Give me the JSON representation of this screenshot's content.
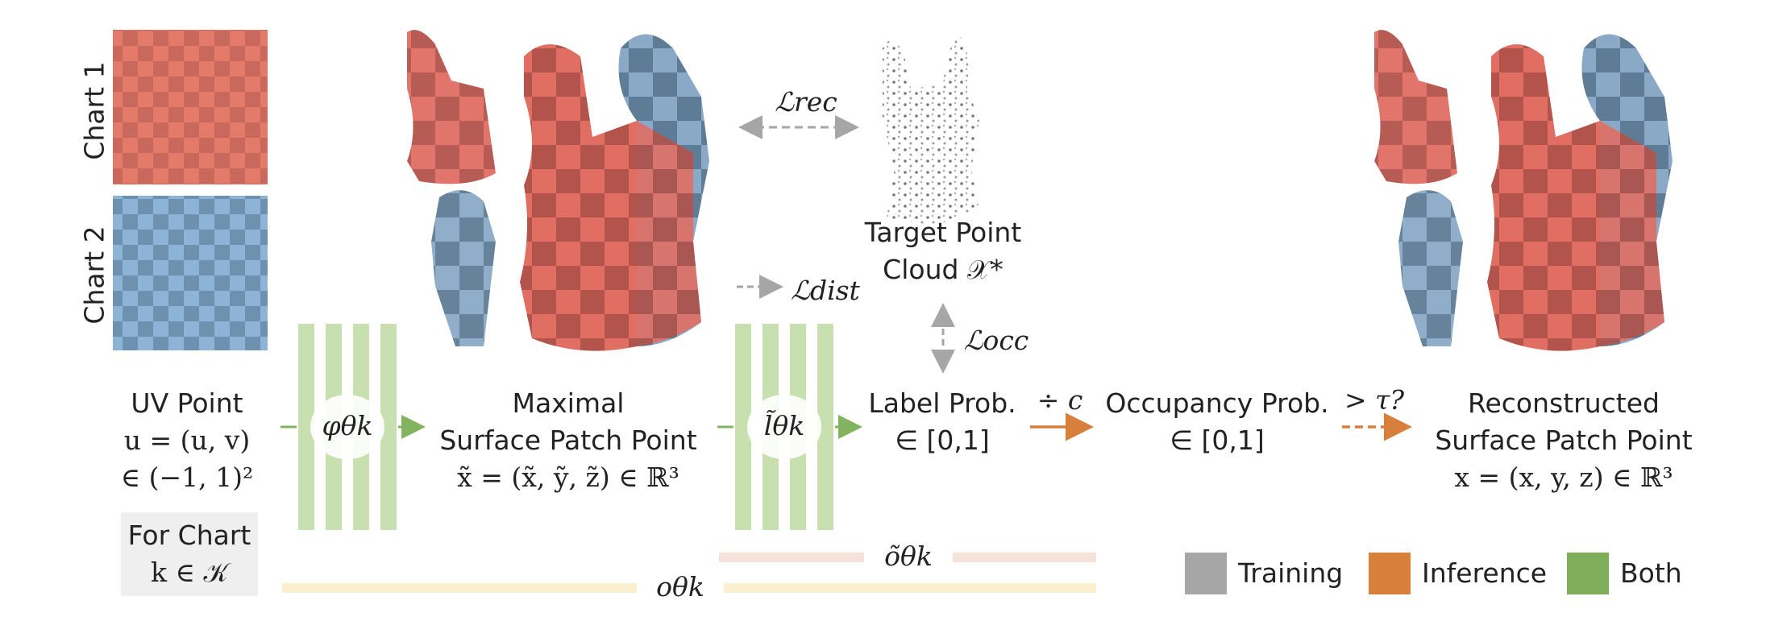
{
  "chart_labels": [
    "Chart 1",
    "Chart 2"
  ],
  "uv_point": {
    "title": "UV Point",
    "eq": "u = (u, v)",
    "range": "∈ (−1, 1)²"
  },
  "for_chart": {
    "line1": "For Chart",
    "line2": "k ∈ 𝒦"
  },
  "phi": "φθk",
  "l_tilde": "l̃θk",
  "maximal": {
    "line1": "Maximal",
    "line2": "Surface Patch Point",
    "eq": "x̃ = (x̃, ỹ, z̃) ∈ ℝ³"
  },
  "target": {
    "line1": "Target Point",
    "line2": "Cloud 𝒳*"
  },
  "losses": {
    "rec": "ℒrec",
    "dist": "ℒdist",
    "occ": "ℒocc"
  },
  "label_prob": {
    "line1": "Label Prob.",
    "line2": "∈ [0,1]"
  },
  "div_c": "÷ c",
  "occupancy": {
    "line1": "Occupancy Prob.",
    "line2": "∈ [0,1]"
  },
  "threshold": "> τ?",
  "reconstructed": {
    "line1": "Reconstructed",
    "line2": "Surface Patch Point",
    "eq": "x = (x, y, z) ∈ ℝ³"
  },
  "o_tilde": "õθk",
  "o": "oθk",
  "legend": [
    {
      "label": "Training",
      "color": "#a6a6a6"
    },
    {
      "label": "Inference",
      "color": "#d97f3c"
    },
    {
      "label": "Both",
      "color": "#7fae5a"
    }
  ],
  "colors": {
    "red_patch": "#d9625c",
    "blue_patch": "#7ea6c9",
    "green_block": "#c8e0b0",
    "arrow_green": "#82b35f",
    "arrow_orange": "#d97f3c",
    "arrow_gray": "#a6a6a6"
  }
}
